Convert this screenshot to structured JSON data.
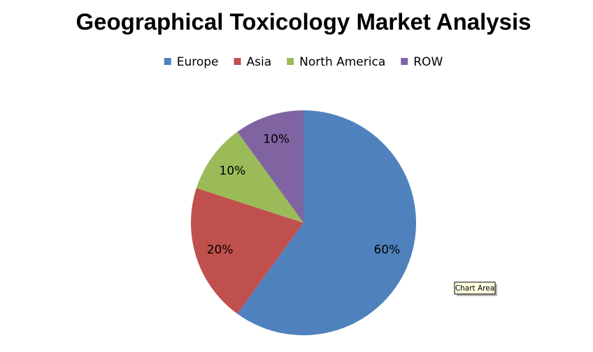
{
  "chart_data": {
    "type": "pie",
    "title": "Geographical Toxicology Market Analysis",
    "categories": [
      "Europe",
      "Asia",
      "North America",
      "ROW"
    ],
    "values": [
      60,
      20,
      10,
      10
    ],
    "value_labels": [
      "60%",
      "20%",
      "10%",
      "10%"
    ],
    "colors": [
      "#4f81bd",
      "#c0504d",
      "#9bbb59",
      "#8064a2"
    ],
    "legend": "top",
    "tooltip": "Chart Area"
  }
}
